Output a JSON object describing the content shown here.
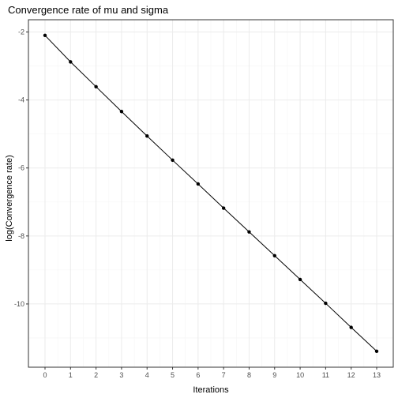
{
  "chart_data": {
    "type": "line",
    "title": "Convergence rate of mu and sigma",
    "xlabel": "Iterations",
    "ylabel": "log(Convergence rate)",
    "x": [
      0,
      1,
      2,
      3,
      4,
      5,
      6,
      7,
      8,
      9,
      10,
      11,
      12,
      13
    ],
    "series": [
      {
        "values": [
          -2.1,
          -2.88,
          -3.61,
          -4.34,
          -5.06,
          -5.77,
          -6.47,
          -7.18,
          -7.88,
          -8.58,
          -9.28,
          -9.98,
          -10.69,
          -11.39
        ]
      }
    ],
    "xlim": [
      -0.65,
      13.65
    ],
    "ylim": [
      -11.86,
      -1.64
    ],
    "x_ticks": [
      0,
      1,
      2,
      3,
      4,
      5,
      6,
      7,
      8,
      9,
      10,
      11,
      12,
      13
    ],
    "y_ticks": [
      -2,
      -4,
      -6,
      -8,
      -10
    ],
    "y_minor_ticks": [
      -3,
      -5,
      -7,
      -9,
      -11
    ],
    "grid": true,
    "legend": "none",
    "colors": {
      "line": "#000000",
      "point": "#000000",
      "grid_major": "#ebebeb",
      "grid_minor": "#f5f5f5",
      "panel_border": "#333333",
      "tick_label": "#4d4d4d"
    }
  }
}
